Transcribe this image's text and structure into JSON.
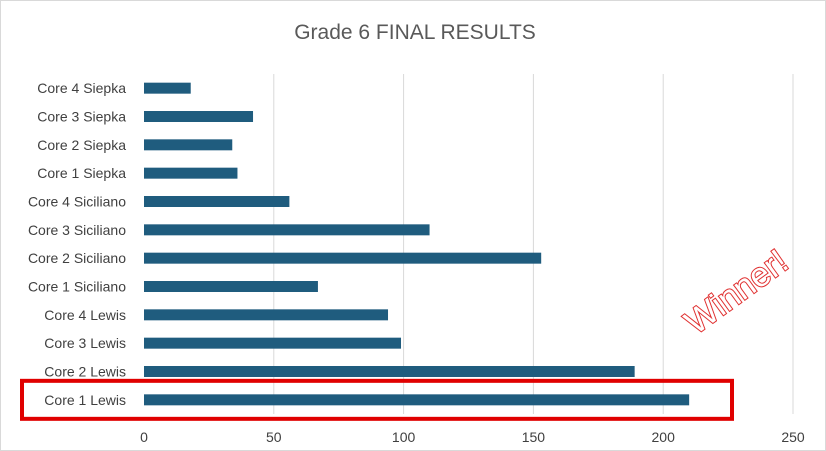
{
  "chart_data": {
    "type": "bar",
    "orientation": "horizontal",
    "title": "Grade 6 FINAL RESULTS",
    "categories": [
      "Core 1 Lewis",
      "Core 2 Lewis",
      "Core 3 Lewis",
      "Core 4 Lewis",
      "Core 1 Siciliano",
      "Core 2 Siciliano",
      "Core 3 Siciliano",
      "Core 4 Siciliano",
      "Core 1 Siepka",
      "Core 2 Siepka",
      "Core 3 Siepka",
      "Core 4 Siepka"
    ],
    "values": [
      210,
      189,
      99,
      94,
      67,
      153,
      110,
      56,
      36,
      34,
      42,
      18
    ],
    "xlim": [
      0,
      250
    ],
    "xticks": [
      "0",
      "50",
      "100",
      "150",
      "200",
      "250"
    ],
    "grid": true,
    "bar_color": "#1f5c7e",
    "grid_color": "#d9d9d9",
    "annotation": {
      "text": "Winner!",
      "color": "#e03030",
      "highlighted_category": "Core 1 Lewis",
      "box_color": "#e00000"
    }
  }
}
